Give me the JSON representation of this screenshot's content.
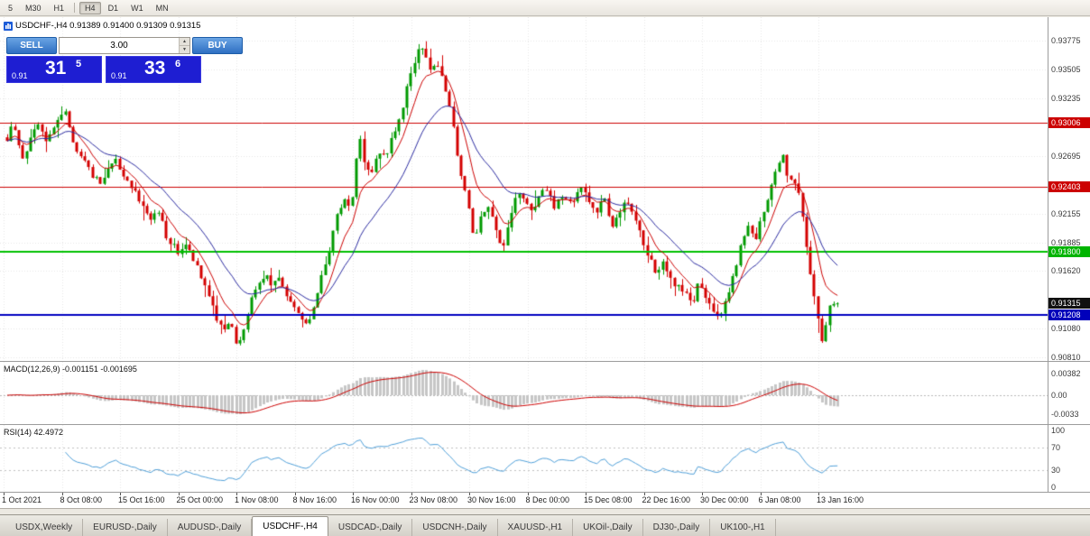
{
  "toolbar": {
    "timeframes": [
      "5",
      "M30",
      "H1",
      "H4",
      "D1",
      "W1",
      "MN"
    ],
    "active_timeframe": "H4"
  },
  "chart": {
    "title": "USDCHF-,H4 0.91389 0.91400 0.91309 0.91315",
    "symbol": "USDCHF-",
    "timeframe": "H4",
    "open": "0.91389",
    "high": "0.91400",
    "low": "0.91309",
    "close": "0.91315"
  },
  "trade_panel": {
    "sell_label": "SELL",
    "buy_label": "BUY",
    "volume": "3.00",
    "sell_price": {
      "prefix": "0.91",
      "big": "31",
      "sup": "5"
    },
    "buy_price": {
      "prefix": "0.91",
      "big": "33",
      "sup": "6"
    }
  },
  "price_axis": {
    "labels": [
      "0.93775",
      "0.93505",
      "0.93235",
      "0.92695",
      "0.92155",
      "0.91885",
      "0.91620",
      "0.91080",
      "0.90810"
    ],
    "badges": [
      {
        "value": "0.93006",
        "bg": "#cc0000",
        "fg": "#ffffff"
      },
      {
        "value": "0.92403",
        "bg": "#cc0000",
        "fg": "#ffffff"
      },
      {
        "value": "0.91800",
        "bg": "#00b400",
        "fg": "#ffffff"
      },
      {
        "value": "0.91315",
        "bg": "#111111",
        "fg": "#ffffff"
      },
      {
        "value": "0.91208",
        "bg": "#0000bb",
        "fg": "#ffffff"
      }
    ]
  },
  "time_axis": [
    "1 Oct 2021",
    "8 Oct 08:00",
    "15 Oct 16:00",
    "25 Oct 00:00",
    "1 Nov 08:00",
    "8 Nov 16:00",
    "16 Nov 00:00",
    "23 Nov 08:00",
    "30 Nov 16:00",
    "8 Dec 00:00",
    "15 Dec 08:00",
    "22 Dec 16:00",
    "30 Dec 00:00",
    "6 Jan 08:00",
    "13 Jan 16:00"
  ],
  "indicators": {
    "macd": {
      "label": "MACD(12,26,9) -0.001151 -0.001695",
      "fast": 12,
      "slow": 26,
      "signal": 9,
      "main_value": "-0.001151",
      "signal_value": "-0.001695",
      "axis": [
        {
          "label": "0.00382",
          "v": 0.00382
        },
        {
          "label": "0.00",
          "v": 0
        },
        {
          "label": "-0.0033",
          "v": -0.0033
        }
      ]
    },
    "rsi": {
      "label": "RSI(14) 42.4972",
      "period": 14,
      "value": "42.4972",
      "axis": [
        {
          "label": "100",
          "v": 100
        },
        {
          "label": "70",
          "v": 70
        },
        {
          "label": "30",
          "v": 30
        },
        {
          "label": "0",
          "v": 0
        }
      ],
      "levels": [
        70,
        30
      ]
    }
  },
  "tabs": [
    "USDX,Weekly",
    "EURUSD-,Daily",
    "AUDUSD-,Daily",
    "USDCHF-,H4",
    "USDCAD-,Daily",
    "USDCNH-,Daily",
    "XAUUSD-,H1",
    "UKOil-,Daily",
    "DJ30-,Daily",
    "UK100-,H1"
  ],
  "active_tab": "USDCHF-,H4",
  "colors": {
    "up_candle": "#009a00",
    "down_candle": "#d40000",
    "ma_fast": "#cc0000",
    "ma_slow": "#2b2ba0",
    "macd_histogram": "#c6c6c6",
    "macd_signal": "#cc0000",
    "rsi_line": "#4f9fd8",
    "grid": "#e6e6e6"
  },
  "chart_data": {
    "type": "candlestick",
    "symbol": "USDCHF",
    "timeframe": "H4",
    "ylim": [
      0.9081,
      0.93775
    ],
    "current_price": 0.91315,
    "levels": [
      {
        "price": 0.93006,
        "color": "#cc0000",
        "width": 1
      },
      {
        "price": 0.92403,
        "color": "#cc0000",
        "width": 1
      },
      {
        "price": 0.918,
        "color": "#00c000",
        "width": 2
      },
      {
        "price": 0.91208,
        "color": "#0000c0",
        "width": 2
      }
    ],
    "price_path_anchors": [
      [
        8,
        0.9287
      ],
      [
        14,
        0.9305
      ],
      [
        20,
        0.9282
      ],
      [
        26,
        0.9266
      ],
      [
        34,
        0.929
      ],
      [
        42,
        0.93
      ],
      [
        50,
        0.9282
      ],
      [
        58,
        0.9295
      ],
      [
        66,
        0.9302
      ],
      [
        72,
        0.9312
      ],
      [
        80,
        0.9285
      ],
      [
        88,
        0.927
      ],
      [
        96,
        0.9262
      ],
      [
        104,
        0.925
      ],
      [
        112,
        0.9243
      ],
      [
        120,
        0.9258
      ],
      [
        128,
        0.9266
      ],
      [
        136,
        0.925
      ],
      [
        144,
        0.924
      ],
      [
        152,
        0.9232
      ],
      [
        160,
        0.922
      ],
      [
        168,
        0.921
      ],
      [
        176,
        0.9218
      ],
      [
        184,
        0.9195
      ],
      [
        192,
        0.9185
      ],
      [
        200,
        0.9178
      ],
      [
        208,
        0.919
      ],
      [
        216,
        0.917
      ],
      [
        224,
        0.9155
      ],
      [
        232,
        0.914
      ],
      [
        240,
        0.9118
      ],
      [
        248,
        0.9108
      ],
      [
        256,
        0.9115
      ],
      [
        264,
        0.909
      ],
      [
        270,
        0.9105
      ],
      [
        278,
        0.9135
      ],
      [
        286,
        0.915
      ],
      [
        294,
        0.9158
      ],
      [
        302,
        0.9148
      ],
      [
        310,
        0.9155
      ],
      [
        318,
        0.9138
      ],
      [
        326,
        0.9128
      ],
      [
        334,
        0.9115
      ],
      [
        342,
        0.911
      ],
      [
        350,
        0.9135
      ],
      [
        358,
        0.916
      ],
      [
        366,
        0.9185
      ],
      [
        374,
        0.9215
      ],
      [
        382,
        0.923
      ],
      [
        390,
        0.9222
      ],
      [
        398,
        0.929
      ],
      [
        404,
        0.9262
      ],
      [
        412,
        0.9255
      ],
      [
        420,
        0.9275
      ],
      [
        428,
        0.927
      ],
      [
        436,
        0.9288
      ],
      [
        444,
        0.931
      ],
      [
        452,
        0.9335
      ],
      [
        460,
        0.936
      ],
      [
        466,
        0.9376
      ],
      [
        472,
        0.936
      ],
      [
        478,
        0.9348
      ],
      [
        486,
        0.9355
      ],
      [
        494,
        0.933
      ],
      [
        502,
        0.93
      ],
      [
        510,
        0.9255
      ],
      [
        518,
        0.923
      ],
      [
        526,
        0.9188
      ],
      [
        534,
        0.9215
      ],
      [
        542,
        0.9225
      ],
      [
        550,
        0.92
      ],
      [
        558,
        0.9182
      ],
      [
        566,
        0.9215
      ],
      [
        574,
        0.9235
      ],
      [
        582,
        0.9228
      ],
      [
        590,
        0.9215
      ],
      [
        598,
        0.923
      ],
      [
        606,
        0.924
      ],
      [
        614,
        0.9222
      ],
      [
        622,
        0.9235
      ],
      [
        630,
        0.9225
      ],
      [
        638,
        0.9232
      ],
      [
        646,
        0.924
      ],
      [
        654,
        0.9228
      ],
      [
        662,
        0.9218
      ],
      [
        670,
        0.923
      ],
      [
        678,
        0.9205
      ],
      [
        686,
        0.9215
      ],
      [
        694,
        0.9228
      ],
      [
        702,
        0.9212
      ],
      [
        710,
        0.9195
      ],
      [
        718,
        0.9178
      ],
      [
        726,
        0.916
      ],
      [
        734,
        0.917
      ],
      [
        742,
        0.9155
      ],
      [
        750,
        0.9148
      ],
      [
        758,
        0.9142
      ],
      [
        766,
        0.913
      ],
      [
        774,
        0.9148
      ],
      [
        782,
        0.9138
      ],
      [
        790,
        0.9125
      ],
      [
        798,
        0.9118
      ],
      [
        806,
        0.914
      ],
      [
        814,
        0.916
      ],
      [
        822,
        0.9188
      ],
      [
        830,
        0.9205
      ],
      [
        838,
        0.9192
      ],
      [
        846,
        0.9218
      ],
      [
        854,
        0.924
      ],
      [
        862,
        0.9262
      ],
      [
        868,
        0.927
      ],
      [
        874,
        0.9248
      ],
      [
        880,
        0.9242
      ],
      [
        886,
        0.9235
      ],
      [
        892,
        0.9195
      ],
      [
        898,
        0.916
      ],
      [
        904,
        0.913
      ],
      [
        910,
        0.9095
      ],
      [
        915,
        0.9112
      ],
      [
        920,
        0.9128
      ],
      [
        928,
        0.91315
      ]
    ]
  }
}
